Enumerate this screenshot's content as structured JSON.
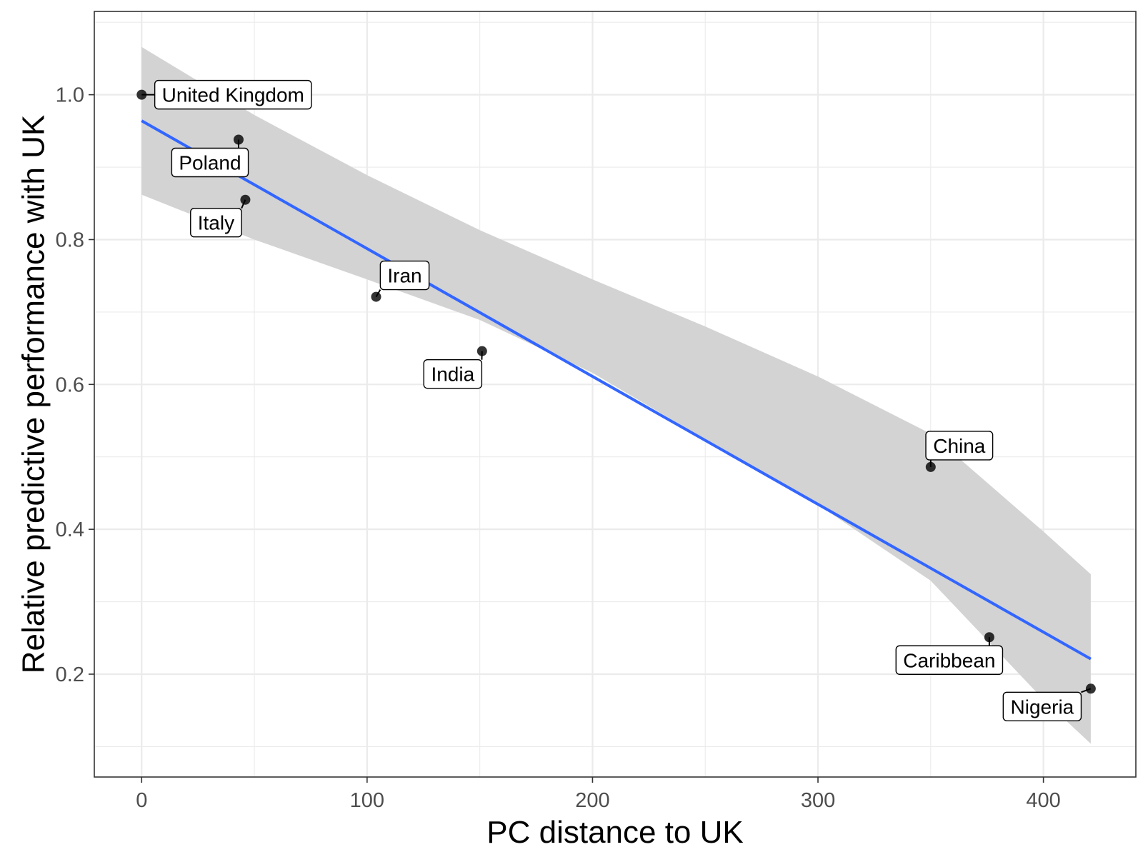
{
  "chart_data": {
    "type": "scatter",
    "title": "",
    "xlabel": "PC distance to UK",
    "ylabel": "Relative predictive performance with UK",
    "xlim": [
      -21,
      441
    ],
    "ylim": [
      0.058,
      1.115
    ],
    "x_ticks": [
      0,
      100,
      200,
      300,
      400
    ],
    "x_tick_labels": [
      "0",
      "100",
      "200",
      "300",
      "400"
    ],
    "y_ticks": [
      0.2,
      0.4,
      0.6,
      0.8,
      1.0
    ],
    "y_tick_labels": [
      "0.2",
      "0.4",
      "0.6",
      "0.8",
      "1.0"
    ],
    "grid": true,
    "points": [
      {
        "label": "United Kingdom",
        "x": 0,
        "y": 1.0
      },
      {
        "label": "Poland",
        "x": 43,
        "y": 0.938
      },
      {
        "label": "Italy",
        "x": 46,
        "y": 0.855
      },
      {
        "label": "Iran",
        "x": 104,
        "y": 0.721
      },
      {
        "label": "India",
        "x": 151,
        "y": 0.646
      },
      {
        "label": "China",
        "x": 350,
        "y": 0.486
      },
      {
        "label": "Caribbean",
        "x": 376,
        "y": 0.251
      },
      {
        "label": "Nigeria",
        "x": 421,
        "y": 0.18
      }
    ],
    "fit_line": {
      "x": [
        0,
        421
      ],
      "y": [
        0.964,
        0.221
      ],
      "color": "#3366FF"
    },
    "confidence_band": {
      "x": [
        0,
        50,
        100,
        150,
        200,
        250,
        300,
        350,
        400,
        421
      ],
      "upper": [
        1.066,
        0.972,
        0.889,
        0.813,
        0.745,
        0.68,
        0.611,
        0.532,
        0.397,
        0.338
      ],
      "lower": [
        0.862,
        0.8,
        0.745,
        0.689,
        0.616,
        0.524,
        0.434,
        0.329,
        0.165,
        0.104
      ],
      "color": "#D3D3D3"
    },
    "colors": {
      "point": "#000000",
      "panel_border": "#333333",
      "grid": "#EBEBEB"
    }
  }
}
